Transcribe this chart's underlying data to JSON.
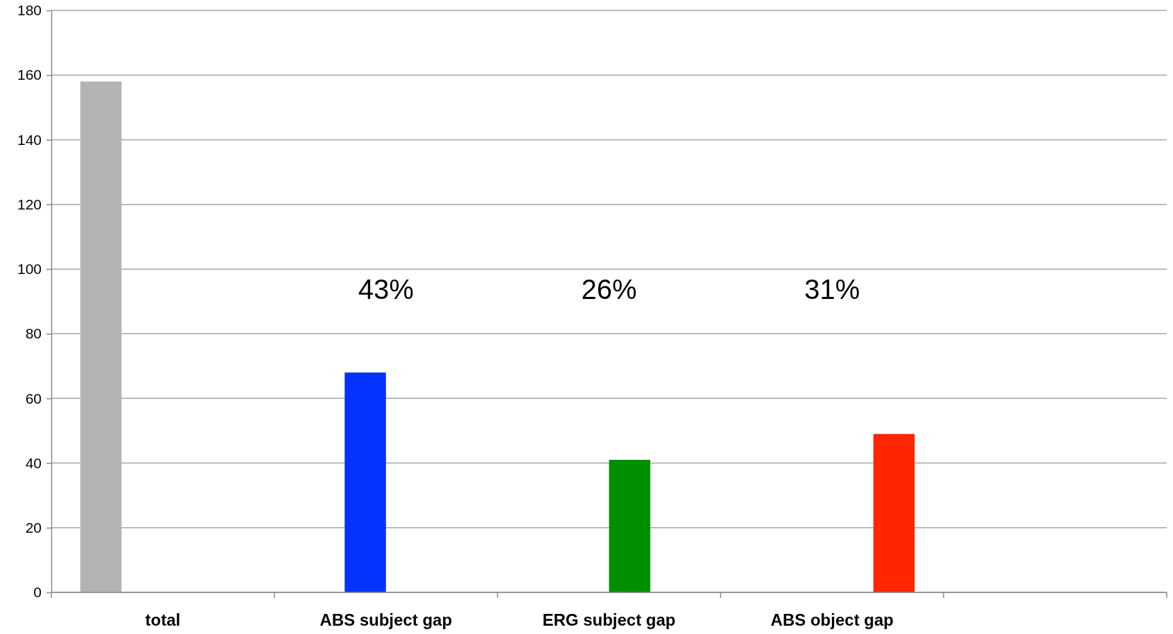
{
  "chart_data": {
    "type": "bar",
    "categories": [
      "total",
      "ABS subject gap",
      "ERG subject gap",
      "ABS object gap",
      null
    ],
    "series": [
      {
        "color": "#b3b3b3",
        "values": [
          158,
          null,
          null,
          null,
          null
        ]
      },
      {
        "color": "#0433ff",
        "values": [
          null,
          68,
          null,
          null,
          null
        ]
      },
      {
        "color": "#008f00",
        "values": [
          null,
          null,
          41,
          null,
          null
        ]
      },
      {
        "color": "#ff2600",
        "values": [
          null,
          null,
          null,
          49,
          null
        ]
      }
    ],
    "ylim": [
      0,
      180
    ],
    "yticks": [
      0,
      20,
      40,
      60,
      80,
      100,
      120,
      140,
      160,
      180
    ],
    "grid": "y",
    "annotations": [
      "43%",
      "26%",
      "31%"
    ]
  }
}
